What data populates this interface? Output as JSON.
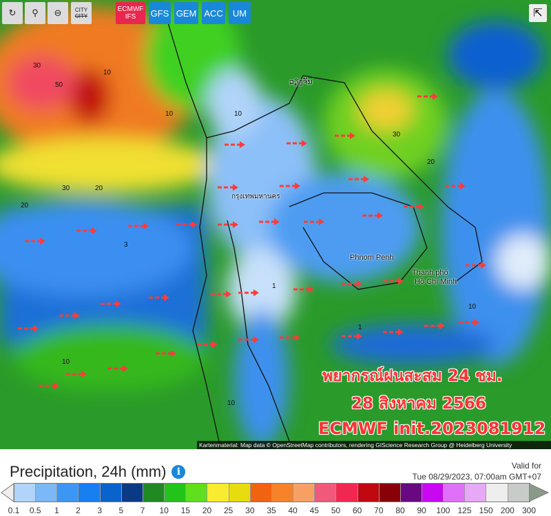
{
  "toolbar": {
    "tools": [
      {
        "icon": "refresh-icon"
      },
      {
        "icon": "location-pin-icon"
      },
      {
        "icon": "zoom-out-icon"
      },
      {
        "label": "CITY",
        "icon": "city-toggle-icon"
      }
    ],
    "models": [
      {
        "label": "ECMWF IFS",
        "active": true
      },
      {
        "label": "GFS"
      },
      {
        "label": "GEM"
      },
      {
        "label": "ACC"
      },
      {
        "label": "UM"
      }
    ],
    "share_icon": "share-icon"
  },
  "map": {
    "places": [
      "ວຽງຈັນ",
      "กรุงเทพมหานคร",
      "Phnom Penh",
      "Thành phố",
      "Hồ Chí Minh"
    ],
    "contour_labels": [
      "50",
      "30",
      "30",
      "20",
      "20",
      "10",
      "10",
      "10",
      "3",
      "1",
      "1",
      "10",
      "10",
      "30",
      "20",
      "10"
    ],
    "overlay": {
      "line1": "พยากรณ์ฝนสะสม 24 ชม.",
      "line2": "28 สิงหาคม 2566",
      "line3": "ECMWF init.2023081912"
    },
    "overlay_color": "#ff3b3b",
    "arrow_color": "#ff3b3b",
    "attribution": "Kartenmaterial: Map data © OpenStreetMap contributors, rendering GIScience Research Group @ Heidelberg University"
  },
  "legend": {
    "title": "Precipitation, 24h (mm)",
    "info_icon": "info-icon",
    "valid_label": "Valid for",
    "valid_time": "Tue 08/29/2023, 07:00am GMT+07",
    "ticks": [
      "0.1",
      "0.5",
      "1",
      "2",
      "3",
      "5",
      "7",
      "10",
      "15",
      "20",
      "25",
      "30",
      "35",
      "40",
      "45",
      "50",
      "60",
      "70",
      "80",
      "90",
      "100",
      "125",
      "150",
      "200",
      "300"
    ],
    "colors": [
      "#b0d4fa",
      "#7ab8f8",
      "#3c96f4",
      "#1680f0",
      "#0a62cc",
      "#0a3a86",
      "#1f8a22",
      "#22c41a",
      "#5fe01c",
      "#f8ec30",
      "#e8dc10",
      "#f06410",
      "#f88228",
      "#f8a064",
      "#f05a7a",
      "#f02850",
      "#c00810",
      "#8a0008",
      "#6a0882",
      "#c808f0",
      "#e070f8",
      "#e8a8f8",
      "#eeeeee",
      "#c8ccc8"
    ],
    "low_end_color": "#eeeeee",
    "high_end_color": "#8a9a8a"
  }
}
